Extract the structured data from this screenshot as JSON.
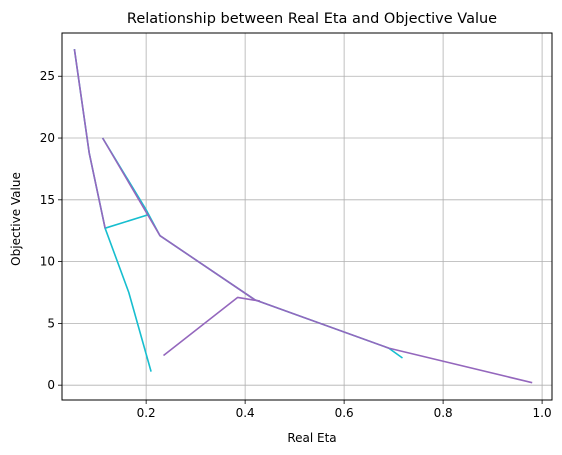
{
  "chart_data": {
    "type": "line",
    "title": "Relationship between Real Eta and Objective Value",
    "xlabel": "Real Eta",
    "ylabel": "Objective Value",
    "xlim": [
      0.03,
      1.02
    ],
    "ylim": [
      -1.2,
      28.5
    ],
    "xticks": [
      0.2,
      0.4,
      0.6,
      0.8,
      1.0
    ],
    "xtick_labels": [
      "0.2",
      "0.4",
      "0.6",
      "0.8",
      "1.0"
    ],
    "yticks": [
      0,
      5,
      10,
      15,
      20,
      25
    ],
    "ytick_labels": [
      "0",
      "5",
      "10",
      "15",
      "20",
      "25"
    ],
    "grid": true,
    "colors": {
      "series_a": "#17becf",
      "series_b": "#9467bd",
      "grid": "#b0b0b0",
      "axis": "#000000"
    },
    "series": [
      {
        "color": "#17becf",
        "x": [
          0.055,
          0.085,
          0.117,
          0.165,
          0.21
        ],
        "y": [
          27.2,
          18.8,
          12.7,
          7.5,
          1.1
        ]
      },
      {
        "color": "#17becf",
        "x": [
          0.117,
          0.205
        ],
        "y": [
          12.7,
          13.8
        ]
      },
      {
        "color": "#17becf",
        "x": [
          0.112,
          0.2,
          0.228,
          0.42,
          0.69,
          0.718
        ],
        "y": [
          20.0,
          14.2,
          12.1,
          6.9,
          3.0,
          2.2
        ]
      },
      {
        "color": "#9467bd",
        "x": [
          0.055,
          0.085,
          0.117
        ],
        "y": [
          27.2,
          18.8,
          12.7
        ]
      },
      {
        "color": "#9467bd",
        "x": [
          0.112,
          0.228,
          0.42,
          0.69,
          0.98
        ],
        "y": [
          20.0,
          12.1,
          6.9,
          3.0,
          0.2
        ]
      },
      {
        "color": "#9467bd",
        "x": [
          0.235,
          0.385,
          0.43
        ],
        "y": [
          2.4,
          7.1,
          6.8
        ]
      }
    ]
  }
}
